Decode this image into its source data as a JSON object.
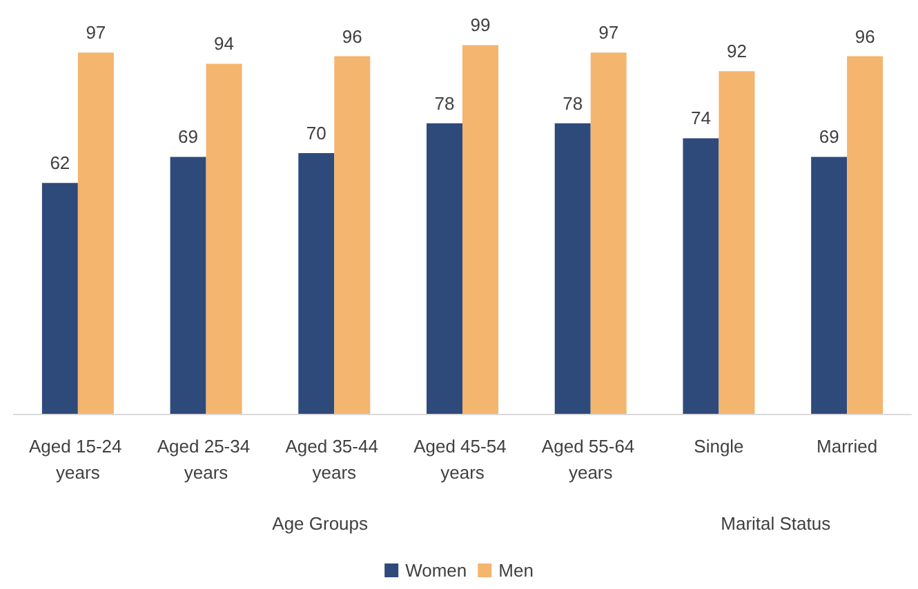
{
  "chart_data": {
    "type": "bar",
    "categories": [
      "Aged 15-24 years",
      "Aged 25-34 years",
      "Aged 35-44 years",
      "Aged 45-54 years",
      "Aged 55-64 years",
      "Single",
      "Married"
    ],
    "series": [
      {
        "name": "Women",
        "color": "#2e4a7b",
        "values": [
          62,
          69,
          70,
          78,
          78,
          74,
          69
        ]
      },
      {
        "name": "Men",
        "color": "#f4b56e",
        "values": [
          97,
          94,
          96,
          99,
          97,
          92,
          96
        ]
      }
    ],
    "data_labels": true,
    "legend": "bottom",
    "annotations": [
      "Age Groups",
      "Marital Status"
    ]
  }
}
